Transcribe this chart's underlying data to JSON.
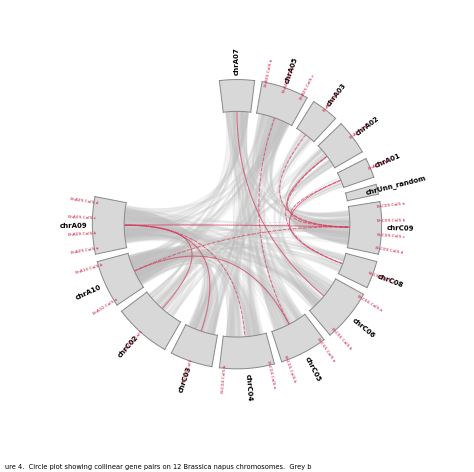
{
  "chrom_angles": [
    {
      "name": "chrA07",
      "sa": 97,
      "ea": 83,
      "subs": []
    },
    {
      "name": "chrA05",
      "sa": 80,
      "ea": 61,
      "subs": [
        "BnA05.CalS.a",
        "BnA05.CalS.b",
        "BnA05.CalS.c"
      ]
    },
    {
      "name": "chrA03",
      "sa": 58,
      "ea": 47,
      "subs": [
        "BnA03.CalS"
      ]
    },
    {
      "name": "chrA02",
      "sa": 44,
      "ea": 30,
      "subs": [
        "BnA02.CalS"
      ]
    },
    {
      "name": "chrA01",
      "sa": 27,
      "ea": 19,
      "subs": [
        "BnA01.CalS"
      ]
    },
    {
      "name": "chrUnn_random",
      "sa": 16,
      "ea": 12,
      "subs": []
    },
    {
      "name": "chrC09",
      "sa": 9,
      "ea": -12,
      "subs": [
        "BnC09.CalS.a",
        "BnC09.CalS.b",
        "BnC09.CalS.c",
        "BnC09.CalS.d"
      ]
    },
    {
      "name": "chrC08",
      "sa": -15,
      "ea": -26,
      "subs": [
        "BnC08.CalS.e"
      ]
    },
    {
      "name": "chrC06",
      "sa": -29,
      "ea": -50,
      "subs": [
        "BnC06.CalS.a",
        "BnC06.CalS.b"
      ]
    },
    {
      "name": "chrC05",
      "sa": -53,
      "ea": -72,
      "subs": [
        "BnC05.CalS.a",
        "BnC05.CalS.b"
      ]
    },
    {
      "name": "chrC04",
      "sa": -75,
      "ea": -97,
      "subs": [
        "BnC04.CalS.a",
        "BnC04.CalS.b"
      ]
    },
    {
      "name": "chrC03",
      "sa": -100,
      "ea": -117,
      "subs": [
        "BnC03.CalS"
      ]
    },
    {
      "name": "chrC02",
      "sa": -120,
      "ea": -143,
      "subs": [
        "BnC02.CalS"
      ]
    },
    {
      "name": "chrA10",
      "sa": -146,
      "ea": -165,
      "subs": [
        "BnA10.CalS.a",
        "BnA10.CalS.b"
      ]
    },
    {
      "name": "chrA09",
      "sa": -168,
      "ea": -191,
      "subs": [
        "BnA09.CalS.a",
        "BnA09.CalS.b",
        "BnA09.CalS.c",
        "BnA09.CalS.d"
      ]
    }
  ],
  "chord_pairs_gray": [
    [
      "chrA07",
      "chrC06"
    ],
    [
      "chrA07",
      "chrC05"
    ],
    [
      "chrA07",
      "chrC04"
    ],
    [
      "chrA07",
      "chrC09"
    ],
    [
      "chrA05",
      "chrC04"
    ],
    [
      "chrA05",
      "chrC05"
    ],
    [
      "chrA05",
      "chrC03"
    ],
    [
      "chrA05",
      "chrC09"
    ],
    [
      "chrA03",
      "chrC03"
    ],
    [
      "chrA03",
      "chrC09"
    ],
    [
      "chrA03",
      "chrC06"
    ],
    [
      "chrA02",
      "chrC02"
    ],
    [
      "chrA02",
      "chrC09"
    ],
    [
      "chrA02",
      "chrC06"
    ],
    [
      "chrA01",
      "chrC09"
    ],
    [
      "chrA01",
      "chrC08"
    ],
    [
      "chrA10",
      "chrC09"
    ],
    [
      "chrA10",
      "chrC08"
    ],
    [
      "chrA10",
      "chrC06"
    ],
    [
      "chrA10",
      "chrC05"
    ],
    [
      "chrA10",
      "chrC04"
    ],
    [
      "chrA10",
      "chrC03"
    ],
    [
      "chrA09",
      "chrC09"
    ],
    [
      "chrA09",
      "chrC08"
    ],
    [
      "chrA09",
      "chrC06"
    ],
    [
      "chrA09",
      "chrC05"
    ],
    [
      "chrA09",
      "chrC04"
    ],
    [
      "chrA09",
      "chrC03"
    ],
    [
      "chrC02",
      "chrA09"
    ],
    [
      "chrC02",
      "chrA10"
    ],
    [
      "chrC03",
      "chrA10"
    ],
    [
      "chrA07",
      "chrA09"
    ],
    [
      "chrA07",
      "chrA10"
    ],
    [
      "chrA05",
      "chrA09"
    ],
    [
      "chrA05",
      "chrA10"
    ]
  ],
  "chord_pairs_pink": [
    [
      "chrA01",
      "chrC09"
    ],
    [
      "chrA02",
      "chrC09"
    ],
    [
      "chrA03",
      "chrC09"
    ],
    [
      "chrA01",
      "chrC08"
    ],
    [
      "chrA02",
      "chrC08"
    ],
    [
      "chrC02",
      "chrA09"
    ],
    [
      "chrC03",
      "chrA09"
    ],
    [
      "chrA07",
      "chrC06"
    ],
    [
      "chrA05",
      "chrC05"
    ],
    [
      "chrA09",
      "chrC09"
    ],
    [
      "chrA10",
      "chrC09"
    ],
    [
      "chrA09",
      "chrC04"
    ],
    [
      "chrA10",
      "chrC05"
    ]
  ],
  "arc_fill": "#d8d8d8",
  "arc_border": "#888888",
  "chord_gray": "#c0c0c0",
  "chord_pink": "#d44060",
  "R_outer": 1.0,
  "R_inner": 0.78,
  "R_label": 1.13,
  "R_sublabel": 1.07
}
